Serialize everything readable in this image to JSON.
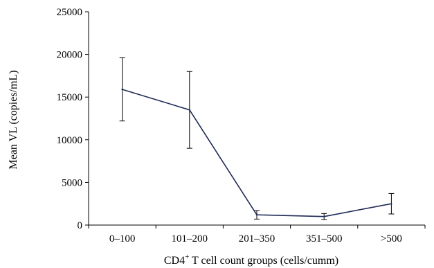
{
  "chart_data": {
    "type": "line",
    "title": "",
    "categories": [
      "0–100",
      "101–200",
      "201–350",
      "351–500",
      ">500"
    ],
    "series": [
      {
        "values": [
          15900,
          13500,
          1200,
          1000,
          2500
        ],
        "error_low": [
          12200,
          9000,
          700,
          650,
          1300
        ],
        "error_high": [
          19600,
          18000,
          1700,
          1350,
          3700
        ]
      }
    ],
    "xlabel_main": "CD4",
    "xlabel_sup": "+",
    "xlabel_rest": " T cell count groups (cells/cumm)",
    "ylabel": "Mean VL (copies/mL)",
    "ylim": [
      0,
      25000
    ],
    "yticks": [
      0,
      5000,
      10000,
      15000,
      20000,
      25000
    ],
    "grid": false,
    "colors": {
      "line": "#1f2a55",
      "error": "#000000",
      "axis": "#000000"
    }
  }
}
